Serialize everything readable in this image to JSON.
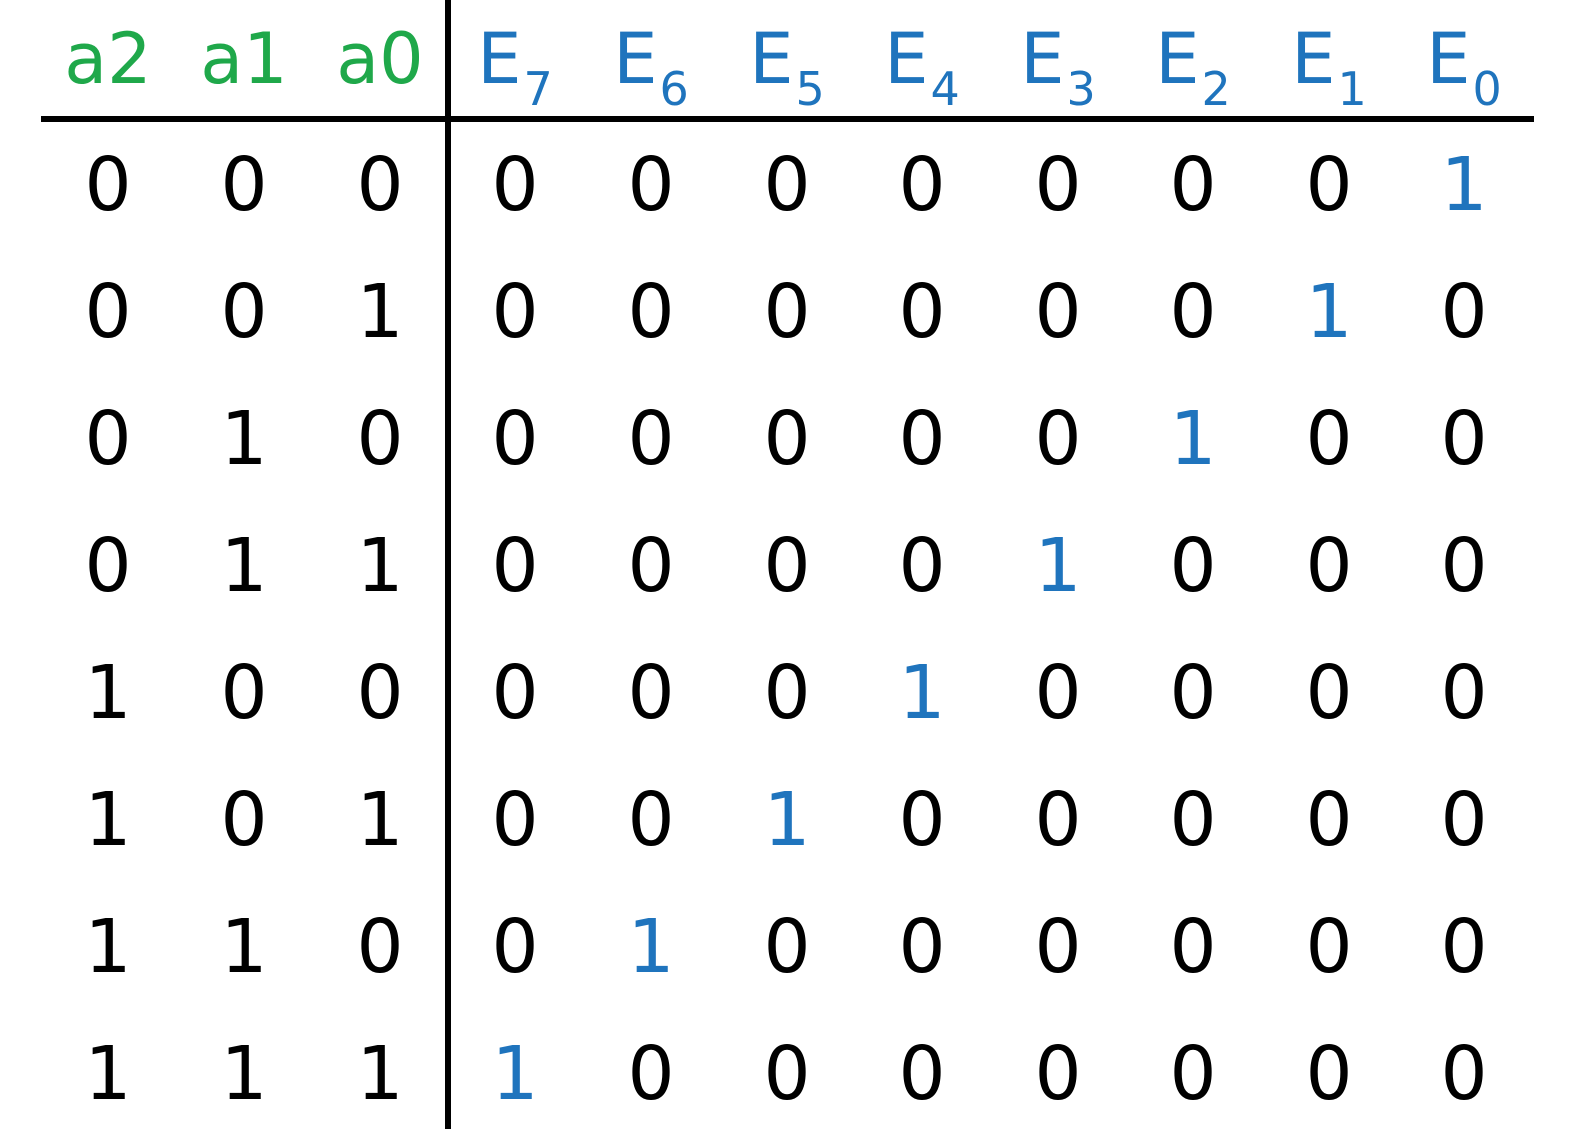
{
  "table": {
    "input_headers": [
      "a2",
      "a1",
      "a0"
    ],
    "output_headers": [
      {
        "base": "E",
        "sub": "7"
      },
      {
        "base": "E",
        "sub": "6"
      },
      {
        "base": "E",
        "sub": "5"
      },
      {
        "base": "E",
        "sub": "4"
      },
      {
        "base": "E",
        "sub": "3"
      },
      {
        "base": "E",
        "sub": "2"
      },
      {
        "base": "E",
        "sub": "1"
      },
      {
        "base": "E",
        "sub": "0"
      }
    ],
    "rows": [
      {
        "inputs": [
          "0",
          "0",
          "0"
        ],
        "outputs": [
          "0",
          "0",
          "0",
          "0",
          "0",
          "0",
          "0",
          "1"
        ]
      },
      {
        "inputs": [
          "0",
          "0",
          "1"
        ],
        "outputs": [
          "0",
          "0",
          "0",
          "0",
          "0",
          "0",
          "1",
          "0"
        ]
      },
      {
        "inputs": [
          "0",
          "1",
          "0"
        ],
        "outputs": [
          "0",
          "0",
          "0",
          "0",
          "0",
          "1",
          "0",
          "0"
        ]
      },
      {
        "inputs": [
          "0",
          "1",
          "1"
        ],
        "outputs": [
          "0",
          "0",
          "0",
          "0",
          "1",
          "0",
          "0",
          "0"
        ]
      },
      {
        "inputs": [
          "1",
          "0",
          "0"
        ],
        "outputs": [
          "0",
          "0",
          "0",
          "1",
          "0",
          "0",
          "0",
          "0"
        ]
      },
      {
        "inputs": [
          "1",
          "0",
          "1"
        ],
        "outputs": [
          "0",
          "0",
          "1",
          "0",
          "0",
          "0",
          "0",
          "0"
        ]
      },
      {
        "inputs": [
          "1",
          "1",
          "0"
        ],
        "outputs": [
          "0",
          "1",
          "0",
          "0",
          "0",
          "0",
          "0",
          "0"
        ]
      },
      {
        "inputs": [
          "1",
          "1",
          "1"
        ],
        "outputs": [
          "1",
          "0",
          "0",
          "0",
          "0",
          "0",
          "0",
          "0"
        ]
      }
    ]
  },
  "colors": {
    "input_header": "#1fa84a",
    "output_header": "#1f74bd",
    "highlight_one": "#1f74bd",
    "text": "#000000",
    "rules": "#000000"
  }
}
